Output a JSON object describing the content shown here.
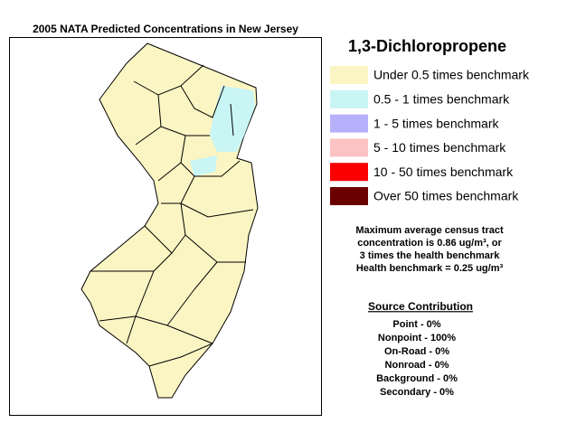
{
  "header": {
    "title": "2005 NATA Predicted Concentrations in New Jersey"
  },
  "legend": {
    "title": "1,3-Dichloropropene",
    "items": [
      {
        "label": "Under 0.5 times benchmark",
        "color": "#fbf5c3"
      },
      {
        "label": "0.5 - 1 times benchmark",
        "color": "#c9f5f5"
      },
      {
        "label": "1 - 5 times benchmark",
        "color": "#b7b1fb"
      },
      {
        "label": "5 - 10 times benchmark",
        "color": "#fbc3c3"
      },
      {
        "label": "10 - 50 times benchmark",
        "color": "#fb0000"
      },
      {
        "label": "Over 50 times benchmark",
        "color": "#6b0000"
      }
    ]
  },
  "notes": [
    "Maximum average census tract",
    "concentration is 0.86 ug/m³, or",
    "3 times the health benchmark",
    "Health benchmark = 0.25 ug/m³"
  ],
  "source_contribution": {
    "title": "Source Contribution",
    "items": [
      "Point - 0%",
      "Nonpoint - 100%",
      "On-Road - 0%",
      "Nonroad - 0%",
      "Background - 0%",
      "Secondary - 0%"
    ]
  }
}
